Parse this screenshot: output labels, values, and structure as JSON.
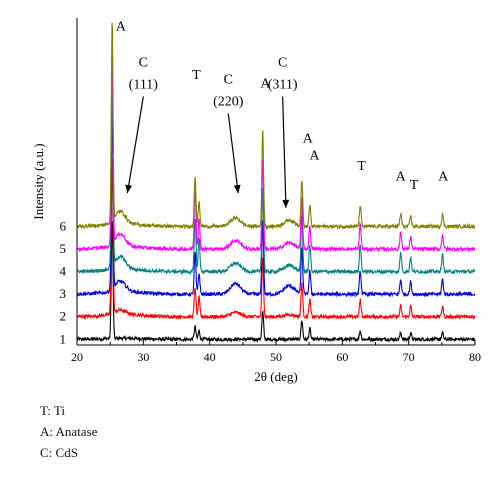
{
  "chart_data": {
    "type": "line",
    "xlabel": "2θ (deg)",
    "ylabel": "Intensity (a.u.)",
    "xlim": [
      20,
      80
    ],
    "xticks": [
      "20",
      "30",
      "40",
      "50",
      "60",
      "70",
      "80"
    ],
    "grid": false,
    "y_ticks_shown": false,
    "series": [
      {
        "name": "1",
        "color": "#000000",
        "offset": 0
      },
      {
        "name": "2",
        "color": "#ff0000",
        "offset": 1
      },
      {
        "name": "3",
        "color": "#0000dd",
        "offset": 2
      },
      {
        "name": "4",
        "color": "#008080",
        "offset": 3
      },
      {
        "name": "5",
        "color": "#ff00ff",
        "offset": 4
      },
      {
        "name": "6",
        "color": "#808000",
        "offset": 5
      }
    ],
    "peaks": [
      {
        "two_theta": 25.3,
        "phase": "A",
        "rel_intensity": [
          5.6,
          7.5,
          8.4,
          8.6,
          9.0,
          9.5
        ]
      },
      {
        "two_theta": 37.8,
        "phase": "A",
        "rel_intensity": [
          0.6,
          1.4,
          2.0,
          2.6,
          2.9,
          2.4
        ]
      },
      {
        "two_theta": 38.4,
        "phase": "T",
        "rel_intensity": [
          0.4,
          0.9,
          1.0,
          1.6,
          1.4,
          1.2
        ]
      },
      {
        "two_theta": 48.0,
        "phase": "A",
        "rel_intensity": [
          1.3,
          2.8,
          3.5,
          4.0,
          4.3,
          4.6
        ]
      },
      {
        "two_theta": 53.9,
        "phase": "A",
        "rel_intensity": [
          0.9,
          1.6,
          2.2,
          2.6,
          2.4,
          2.2
        ]
      },
      {
        "two_theta": 55.1,
        "phase": "A",
        "rel_intensity": [
          0.5,
          0.8,
          1.1,
          1.3,
          1.1,
          1.0
        ]
      },
      {
        "two_theta": 62.7,
        "phase": "T",
        "rel_intensity": [
          0.4,
          0.8,
          1.1,
          1.3,
          1.2,
          1.0
        ]
      },
      {
        "two_theta": 68.8,
        "phase": "A",
        "rel_intensity": [
          0.3,
          0.5,
          0.7,
          0.9,
          0.8,
          0.6
        ]
      },
      {
        "two_theta": 70.3,
        "phase": "T",
        "rel_intensity": [
          0.3,
          0.5,
          0.6,
          0.7,
          0.6,
          0.5
        ]
      },
      {
        "two_theta": 75.1,
        "phase": "A",
        "rel_intensity": [
          0.3,
          0.5,
          0.7,
          0.8,
          0.7,
          0.6
        ]
      },
      {
        "two_theta": 26.5,
        "phase": "C",
        "rel_intensity": [
          0.0,
          0.2,
          0.5,
          0.6,
          0.6,
          0.6
        ]
      },
      {
        "two_theta": 43.9,
        "phase": "C",
        "rel_intensity": [
          0.0,
          0.2,
          0.5,
          0.4,
          0.4,
          0.4
        ]
      },
      {
        "two_theta": 52.0,
        "phase": "C",
        "rel_intensity": [
          0.0,
          0.1,
          0.4,
          0.3,
          0.3,
          0.3
        ]
      }
    ],
    "peak_labels": [
      {
        "text": "A",
        "x": 26.6,
        "y": 14.9
      },
      {
        "text": "T",
        "x": 38.0,
        "y": 12.6
      },
      {
        "text": "A",
        "x": 48.4,
        "y": 12.2
      },
      {
        "text": "A",
        "x": 54.8,
        "y": 9.6
      },
      {
        "text": "A",
        "x": 55.8,
        "y": 8.8
      },
      {
        "text": "T",
        "x": 62.9,
        "y": 8.3
      },
      {
        "text": "A",
        "x": 68.8,
        "y": 7.8
      },
      {
        "text": "T",
        "x": 70.8,
        "y": 7.4
      },
      {
        "text": "A",
        "x": 75.2,
        "y": 7.8
      }
    ],
    "phase_annotations": [
      {
        "text": "C",
        "hkl": "(111)",
        "x": 30.0,
        "y_text": 13.2,
        "arrow_to": [
          27.6,
          7.2
        ]
      },
      {
        "text": "C",
        "hkl": "(220)",
        "x": 42.8,
        "y_text": 12.4,
        "arrow_to": [
          44.3,
          7.2
        ]
      },
      {
        "text": "C",
        "hkl": "(311)",
        "x": 51.0,
        "y_text": 13.2,
        "arrow_to": [
          51.5,
          6.5
        ]
      }
    ]
  },
  "legend_notes": [
    "T: Ti",
    "A: Anatase",
    "C: CdS"
  ]
}
